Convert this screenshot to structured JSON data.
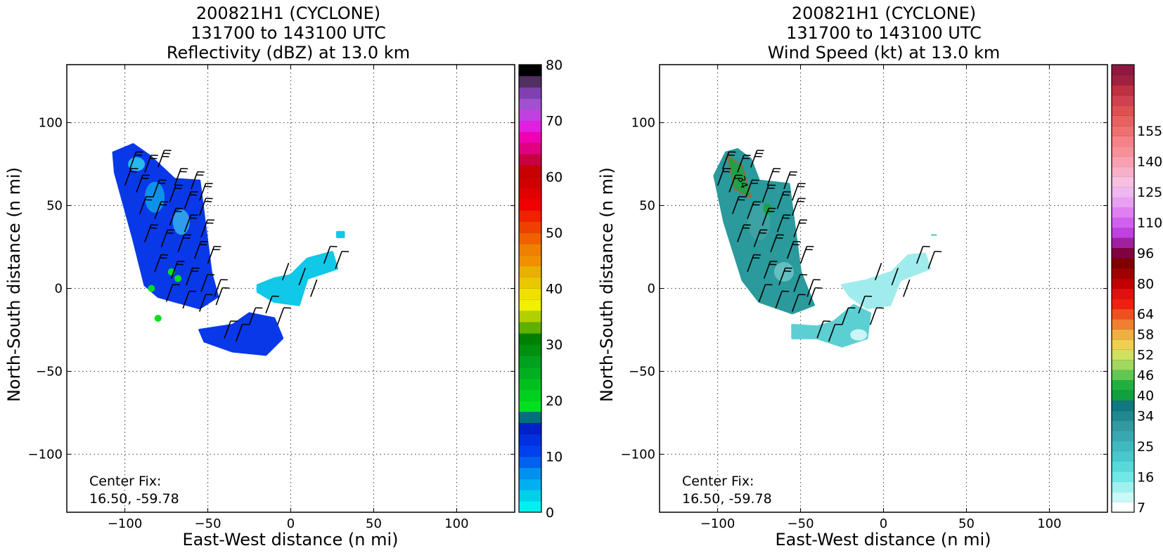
{
  "panels": [
    {
      "id": "reflectivity",
      "title_lines": [
        "200821H1 (CYCLONE)",
        "131700 to 143100 UTC",
        "Reflectivity (dBZ) at 13.0 km"
      ],
      "xlabel": "East-West distance (n mi)",
      "ylabel": "North-South distance (n mi)",
      "center_fix_label": "Center Fix:",
      "center_fix_value": "16.50, -59.78",
      "colorbar": {
        "min": 0,
        "max": 80,
        "ticks": [
          "0",
          "10",
          "20",
          "30",
          "40",
          "50",
          "60",
          "70",
          "80"
        ],
        "colors": [
          "#00f0f0",
          "#00d0e8",
          "#00b0f0",
          "#0090f0",
          "#0060f0",
          "#0040f0",
          "#0030e0",
          "#0020c8",
          "#00707a",
          "#00e020",
          "#00d020",
          "#00c020",
          "#00b020",
          "#00a020",
          "#009010",
          "#008000",
          "#60b000",
          "#b0d000",
          "#f0f000",
          "#f0e000",
          "#e8c800",
          "#e8b000",
          "#f09000",
          "#f08000",
          "#f06000",
          "#f04000",
          "#f02000",
          "#f00000",
          "#e00000",
          "#d00000",
          "#c80000",
          "#c80040",
          "#e00080",
          "#f000b0",
          "#e020e0",
          "#c040e0",
          "#a050d0",
          "#8040b0",
          "#503060",
          "#000000"
        ]
      },
      "legend_extra": ""
    },
    {
      "id": "wind",
      "title_lines": [
        "200821H1 (CYCLONE)",
        "131700 to 143100 UTC",
        "Wind Speed (kt) at 13.0 km"
      ],
      "xlabel": "East-West distance (n mi)",
      "ylabel": "North-South distance (n mi)",
      "center_fix_label": "Center Fix:",
      "center_fix_value": "16.50, -59.78",
      "contour_label": "34",
      "colorbar": {
        "ticks": [
          "7",
          "16",
          "25",
          "34",
          "40",
          "46",
          "52",
          "58",
          "64",
          "80",
          "96",
          "110",
          "125",
          "140",
          "155"
        ],
        "colors": [
          "#ffffff",
          "#c8f8f8",
          "#a0f0f0",
          "#70e8e8",
          "#58d8d8",
          "#48c8cc",
          "#40b8c0",
          "#38a8b0",
          "#309aa0",
          "#208890",
          "#107880",
          "#10a040",
          "#20b040",
          "#60c850",
          "#a0d860",
          "#d0e060",
          "#f0d050",
          "#f0b040",
          "#f08030",
          "#f05020",
          "#f02010",
          "#e01010",
          "#c00000",
          "#a00000",
          "#800000",
          "#800040",
          "#a020a0",
          "#c040e0",
          "#d060f0",
          "#e080f0",
          "#e8a0f0",
          "#f0b8f0",
          "#f8c0e0",
          "#f8b0c8",
          "#f8a0b0",
          "#f89098",
          "#f88088",
          "#f07070",
          "#e86060",
          "#e05050",
          "#d04050",
          "#c03040",
          "#a02040",
          "#901840"
        ],
        "tick_index": [
          0,
          3,
          6,
          9,
          11,
          13,
          15,
          17,
          19,
          22,
          25,
          28,
          31,
          34,
          37
        ]
      }
    }
  ],
  "axes": {
    "xlim": [
      -135,
      135
    ],
    "ylim": [
      -135,
      135
    ],
    "xticks": [
      -100,
      -50,
      0,
      50,
      100
    ],
    "yticks": [
      -100,
      -50,
      0,
      50,
      100
    ],
    "xtick_labels": [
      "−100",
      "−50",
      "0",
      "50",
      "100"
    ],
    "ytick_labels": [
      "−100",
      "−50",
      "0",
      "50",
      "100"
    ],
    "grid": true
  },
  "chart_data": [
    {
      "type": "heatmap",
      "title": "200821H1 (CYCLONE) 131700 to 143100 UTC Reflectivity (dBZ) at 13.0 km",
      "xlabel": "East-West distance (n mi)",
      "ylabel": "North-South distance (n mi)",
      "xlim": [
        -135,
        135
      ],
      "ylim": [
        -135,
        135
      ],
      "colorbar_range": [
        0,
        80
      ],
      "regions": [
        {
          "name": "northwest band",
          "poly": [
            [
              -107,
              82
            ],
            [
              -95,
              87
            ],
            [
              -85,
              80
            ],
            [
              -70,
              66
            ],
            [
              -55,
              65
            ],
            [
              -48,
              10
            ],
            [
              -44,
              -5
            ],
            [
              -55,
              -12
            ],
            [
              -80,
              -5
            ],
            [
              -88,
              2
            ],
            [
              -95,
              30
            ],
            [
              -106,
              70
            ]
          ],
          "value": 12
        },
        {
          "name": "southeast cell",
          "poly": [
            [
              -55,
              -25
            ],
            [
              -35,
              -22
            ],
            [
              -25,
              -15
            ],
            [
              -10,
              -18
            ],
            [
              -5,
              -30
            ],
            [
              -15,
              -40
            ],
            [
              -35,
              -38
            ],
            [
              -52,
              -32
            ]
          ],
          "value": 13
        },
        {
          "name": "east arc",
          "poly": [
            [
              -20,
              2
            ],
            [
              -10,
              6
            ],
            [
              0,
              8
            ],
            [
              10,
              18
            ],
            [
              25,
              22
            ],
            [
              28,
              12
            ],
            [
              10,
              6
            ],
            [
              5,
              -10
            ],
            [
              -10,
              -8
            ],
            [
              -20,
              -2
            ]
          ],
          "value": 5
        },
        {
          "name": "small cell",
          "poly": [
            [
              28,
              34
            ],
            [
              32,
              34
            ],
            [
              32,
              31
            ],
            [
              28,
              31
            ]
          ],
          "value": 4
        }
      ],
      "cores": [
        [
          -72,
          10,
          20
        ],
        [
          -84,
          0,
          22
        ],
        [
          -68,
          6,
          18
        ],
        [
          -80,
          -18,
          25
        ]
      ]
    },
    {
      "type": "heatmap",
      "title": "200821H1 (CYCLONE) 131700 to 143100 UTC Wind Speed (kt) at 13.0 km",
      "xlabel": "East-West distance (n mi)",
      "ylabel": "North-South distance (n mi)",
      "xlim": [
        -135,
        135
      ],
      "ylim": [
        -135,
        135
      ],
      "colorbar_range": [
        7,
        160
      ],
      "regions": [
        {
          "name": "northwest band",
          "poly": [
            [
              -102,
              68
            ],
            [
              -95,
              82
            ],
            [
              -88,
              84
            ],
            [
              -80,
              78
            ],
            [
              -75,
              65
            ],
            [
              -57,
              63
            ],
            [
              -50,
              10
            ],
            [
              -42,
              -10
            ],
            [
              -55,
              -15
            ],
            [
              -75,
              -8
            ],
            [
              -85,
              5
            ],
            [
              -96,
              40
            ]
          ],
          "value": 25
        },
        {
          "name": "southeast patch",
          "poly": [
            [
              -55,
              -22
            ],
            [
              -40,
              -23
            ],
            [
              -30,
              -20
            ],
            [
              -18,
              -10
            ],
            [
              -8,
              -15
            ],
            [
              -10,
              -30
            ],
            [
              -25,
              -35
            ],
            [
              -40,
              -30
            ],
            [
              -55,
              -30
            ]
          ],
          "value": 12
        },
        {
          "name": "east arc",
          "poly": [
            [
              -25,
              2
            ],
            [
              -10,
              5
            ],
            [
              5,
              10
            ],
            [
              15,
              20
            ],
            [
              25,
              21
            ],
            [
              28,
              12
            ],
            [
              10,
              5
            ],
            [
              4,
              -10
            ],
            [
              -10,
              -12
            ],
            [
              -20,
              -5
            ]
          ],
          "value": 9
        }
      ],
      "max_wind_area": [
        [
          -94,
          80
        ],
        [
          -85,
          74
        ],
        [
          -80,
          55
        ],
        [
          -90,
          60
        ]
      ],
      "contour_34_label_at": [
        -88,
        67
      ]
    }
  ],
  "wind_barbs": [
    [
      -97,
      72,
      25
    ],
    [
      -88,
      70,
      28
    ],
    [
      -80,
      73,
      30
    ],
    [
      -70,
      62,
      26
    ],
    [
      -60,
      60,
      22
    ],
    [
      -55,
      53,
      24
    ],
    [
      -100,
      62,
      20
    ],
    [
      -93,
      58,
      25
    ],
    [
      -83,
      55,
      28
    ],
    [
      -73,
      52,
      28
    ],
    [
      -64,
      48,
      25
    ],
    [
      -55,
      44,
      22
    ],
    [
      -91,
      45,
      22
    ],
    [
      -82,
      42,
      25
    ],
    [
      -73,
      38,
      25
    ],
    [
      -64,
      34,
      25
    ],
    [
      -54,
      31,
      22
    ],
    [
      -88,
      28,
      22
    ],
    [
      -78,
      25,
      25
    ],
    [
      -68,
      22,
      25
    ],
    [
      -58,
      18,
      22
    ],
    [
      -50,
      15,
      20
    ],
    [
      -82,
      10,
      20
    ],
    [
      -72,
      6,
      20
    ],
    [
      -63,
      2,
      20
    ],
    [
      -54,
      -2,
      18
    ],
    [
      -46,
      -5,
      18
    ],
    [
      -75,
      -8,
      18
    ],
    [
      -65,
      -12,
      15
    ],
    [
      -55,
      -14,
      15
    ],
    [
      -45,
      -10,
      15
    ],
    [
      -40,
      -30,
      12
    ],
    [
      -33,
      -32,
      12
    ],
    [
      -25,
      -22,
      12
    ],
    [
      -15,
      -15,
      10
    ],
    [
      -8,
      -22,
      10
    ],
    [
      -5,
      5,
      8
    ],
    [
      5,
      2,
      8
    ],
    [
      12,
      -5,
      8
    ],
    [
      20,
      15,
      10
    ],
    [
      27,
      12,
      10
    ]
  ]
}
